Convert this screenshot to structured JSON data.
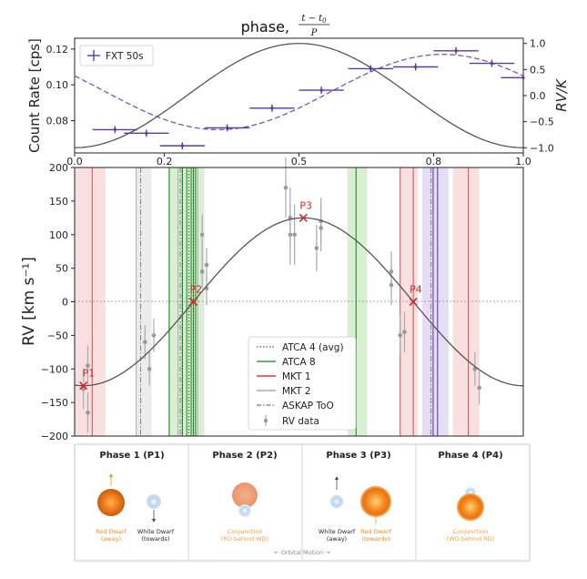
{
  "colors": {
    "purple": "#5b3aa0",
    "curve": "#555555",
    "red": "#d03a3a",
    "green": "#3c9c3c",
    "gray": "#999999",
    "orange": "#f08a24",
    "wd_blue": "#b7cfe6"
  },
  "chart_data": [
    {
      "type": "scatter",
      "title_text": "phase, ",
      "title_frac_num": "t − t",
      "title_frac_sub": "0",
      "title_frac_den": "P",
      "ylabel": "Count Rate [cps]",
      "ylabel_right": "RV/K",
      "xlim": [
        0,
        1
      ],
      "ylim": [
        0.062,
        0.126
      ],
      "ylim_right": [
        -1.1,
        1.1
      ],
      "yticks": [
        0.08,
        0.1,
        0.12
      ],
      "ytick_labels": [
        "0.08",
        "0.10",
        "0.12"
      ],
      "yticks_right": [
        -1.0,
        -0.5,
        0.0,
        0.5,
        1.0
      ],
      "ytick_labels_right": [
        "−1.0",
        "−0.5",
        "0.0",
        "0.5",
        "1.0"
      ],
      "xticks": [
        0,
        0.2,
        0.5,
        0.8,
        1.0
      ],
      "xtick_labels": [
        "0.0",
        "0.2",
        "0.5",
        "0.8",
        "1.0"
      ],
      "legend": "FXT 50s",
      "series": [
        {
          "name": "FXT 50s",
          "x": [
            0.09,
            0.16,
            0.24,
            0.34,
            0.44,
            0.55,
            0.66,
            0.76,
            0.85,
            0.93,
            1.0
          ],
          "y": [
            0.075,
            0.073,
            0.066,
            0.076,
            0.087,
            0.097,
            0.109,
            0.11,
            0.119,
            0.112,
            0.104
          ],
          "xerr": 0.05,
          "yerr": 0.002
        }
      ],
      "model_curves": [
        {
          "style": "solid",
          "desc": "RV/K sine",
          "amplitude": 1.0,
          "peak_phase": 0.5
        },
        {
          "style": "dashed",
          "desc": "count-rate model",
          "mean": 0.096,
          "amplitude": 0.021,
          "peak_phase": 0.82
        }
      ]
    },
    {
      "type": "line",
      "ylabel": "RV [km s⁻¹]",
      "xlim": [
        -0.02,
        1.0
      ],
      "ylim": [
        -200,
        200
      ],
      "yticks": [
        -200,
        -150,
        -100,
        -50,
        0,
        50,
        100,
        150,
        200
      ],
      "ytick_labels": [
        "−200",
        "−150",
        "−100",
        "−50",
        "0",
        "50",
        "100",
        "150",
        "200"
      ],
      "model": {
        "K": 125,
        "peak_phase": 0.5,
        "desc": "RV = −K·cos(2π·phase)"
      },
      "phase_points": [
        {
          "label": "P1",
          "phase": 0.0,
          "rv": -125
        },
        {
          "label": "P2",
          "phase": 0.25,
          "rv": 0
        },
        {
          "label": "P3",
          "phase": 0.5,
          "rv": 125
        },
        {
          "label": "P4",
          "phase": 0.75,
          "rv": 0
        }
      ],
      "rv_data": {
        "x": [
          0.0,
          0.01,
          0.01,
          0.14,
          0.15,
          0.16,
          0.27,
          0.27,
          0.28,
          0.28,
          0.46,
          0.47,
          0.47,
          0.48,
          0.53,
          0.54,
          0.54,
          0.7,
          0.7,
          0.72,
          0.73,
          0.89,
          0.9
        ],
        "y": [
          -130,
          -95,
          -165,
          -60,
          -100,
          -50,
          100,
          45,
          20,
          55,
          170,
          100,
          125,
          100,
          80,
          120,
          110,
          45,
          25,
          -50,
          -45,
          -100,
          -128
        ],
        "yerr": [
          30,
          30,
          30,
          25,
          25,
          25,
          30,
          25,
          25,
          25,
          45,
          45,
          45,
          45,
          35,
          35,
          35,
          30,
          30,
          30,
          30,
          25,
          25
        ]
      },
      "vertical_lines": [
        {
          "type": "MKT 1",
          "x": [
            0.02,
            0.72,
            0.75,
            0.875
          ]
        },
        {
          "type": "MKT 2",
          "x": [
            0.12,
            0.215,
            0.26
          ]
        },
        {
          "type": "ATCA 8",
          "x": [
            0.195,
            0.225,
            0.235,
            0.245,
            0.25,
            0.255,
            0.62
          ]
        },
        {
          "type": "ATCA 4 (avg)",
          "x": [
            0.225,
            0.24,
            0.25
          ]
        },
        {
          "type": "ASKAP ToO",
          "x": [
            0.13,
            0.22,
            0.79
          ]
        }
      ],
      "bands": [
        {
          "color": "red",
          "x": [
            -0.02,
            0.05
          ]
        },
        {
          "color": "gray",
          "x": [
            0.12,
            0.155
          ]
        },
        {
          "color": "green",
          "x": [
            0.195,
            0.275
          ]
        },
        {
          "color": "green",
          "x": [
            0.6,
            0.645
          ]
        },
        {
          "color": "red",
          "x": [
            0.72,
            0.76
          ]
        },
        {
          "color": "purple",
          "x": [
            0.77,
            0.83
          ]
        },
        {
          "color": "red",
          "x": [
            0.84,
            0.9
          ]
        }
      ],
      "legend": [
        "ATCA 4 (avg)",
        "ATCA 8",
        "MKT 1",
        "MKT 2",
        "ASKAP ToO",
        "RV data"
      ]
    }
  ],
  "diagram": {
    "phases": [
      {
        "title": "Phase 1 (P1)",
        "cap_left_1": "Red Dwarf",
        "cap_left_2": "(away)",
        "cap_right_1": "White Dwarf",
        "cap_right_2": "(towards)"
      },
      {
        "title": "Phase 2 (P2)",
        "cap_1": "Conjunction",
        "cap_2": "(RD behind WD)"
      },
      {
        "title": "Phase 3 (P3)",
        "cap_left_1": "White Dwarf",
        "cap_left_2": "(away)",
        "cap_right_1": "Red Dwarf",
        "cap_right_2": "(towards)"
      },
      {
        "title": "Phase 4 (P4)",
        "cap_1": "Conjunction",
        "cap_2": "(WD behind RD)"
      }
    ],
    "footer": "← Orbital Motion →"
  }
}
